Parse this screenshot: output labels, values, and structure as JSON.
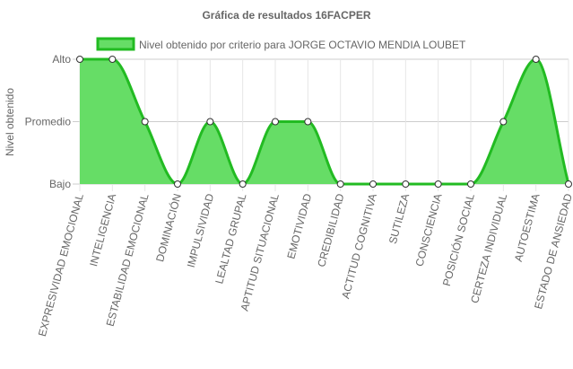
{
  "chart_data": {
    "type": "area",
    "title": "Gráfica de resultados 16FACPER",
    "ylabel": "Nivel obtenido",
    "y_levels": [
      "Bajo",
      "Promedio",
      "Alto"
    ],
    "ylim": [
      0,
      2
    ],
    "grid": true,
    "legend_position": "top",
    "categories": [
      "EXPRESIVIDAD EMOCIONAL",
      "INTELIGENCIA",
      "ESTABILIDAD EMOCIONAL",
      "DOMINACIÓN",
      "IMPULSIVIDAD",
      "LEALTAD GRUPAL",
      "APTITUD SITUACIONAL",
      "EMOTIVIDAD",
      "CREDIBILIDAD",
      "ACTITUD COGNITIVA",
      "SUTILEZA",
      "CONSCIENCIA",
      "POSICIÓN SOCIAL",
      "CERTEZA INDIVIDUAL",
      "AUTOESTIMA",
      "ESTADO DE ANSIEDAD"
    ],
    "series": [
      {
        "name": "Nivel obtenido por criterio para JORGE OCTAVIO MENDIA LOUBET",
        "values": [
          2,
          2,
          1,
          0,
          1,
          0,
          1,
          1,
          0,
          0,
          0,
          0,
          0,
          1,
          2,
          0
        ],
        "fill_color": "#66dd66",
        "line_color": "#22bb22"
      }
    ]
  }
}
